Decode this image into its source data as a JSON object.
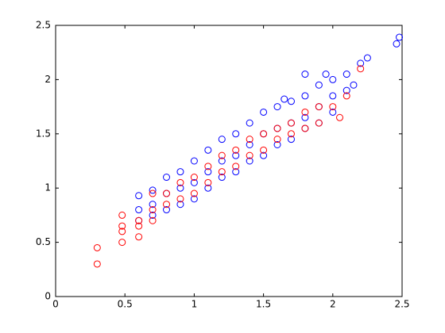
{
  "chart_data": {
    "type": "scatter",
    "xlim": [
      0,
      2.5
    ],
    "xticks": [
      0,
      0.5,
      1,
      1.5,
      2,
      2.5
    ],
    "ylim": [
      0,
      2.5
    ],
    "yticks": [
      0,
      0.5,
      1,
      1.5,
      2,
      2.5
    ],
    "series": [
      {
        "color": "#0000ff",
        "x": [
          0.6,
          0.6,
          0.6,
          0.7,
          0.7,
          0.7,
          0.8,
          0.8,
          0.8,
          0.9,
          0.9,
          0.9,
          1.0,
          1.0,
          1.0,
          1.1,
          1.1,
          1.1,
          1.2,
          1.2,
          1.2,
          1.3,
          1.3,
          1.3,
          1.4,
          1.4,
          1.4,
          1.5,
          1.5,
          1.5,
          1.6,
          1.6,
          1.6,
          1.7,
          1.7,
          1.7,
          1.8,
          1.8,
          1.8,
          1.9,
          1.9,
          1.9,
          2.0,
          2.0,
          2.0,
          2.1,
          2.1,
          2.15,
          2.2,
          2.25,
          2.46,
          2.48,
          1.8,
          1.65,
          1.95
        ],
        "values": [
          0.93,
          0.8,
          0.7,
          0.98,
          0.85,
          0.75,
          1.1,
          0.95,
          0.8,
          1.15,
          1.0,
          0.85,
          1.25,
          1.05,
          0.9,
          1.35,
          1.15,
          1.0,
          1.45,
          1.25,
          1.1,
          1.5,
          1.3,
          1.15,
          1.6,
          1.4,
          1.25,
          1.7,
          1.5,
          1.3,
          1.75,
          1.55,
          1.4,
          1.8,
          1.6,
          1.45,
          1.85,
          1.65,
          1.55,
          1.95,
          1.75,
          1.6,
          2.0,
          1.85,
          1.7,
          2.05,
          1.9,
          1.95,
          2.15,
          2.2,
          2.33,
          2.39,
          2.05,
          1.82,
          2.05
        ]
      },
      {
        "color": "#ff0000",
        "x": [
          0.3,
          0.3,
          0.48,
          0.48,
          0.48,
          0.48,
          0.6,
          0.6,
          0.6,
          0.7,
          0.7,
          0.7,
          0.8,
          0.8,
          0.9,
          0.9,
          1.0,
          1.0,
          1.1,
          1.1,
          1.2,
          1.2,
          1.3,
          1.3,
          1.4,
          1.4,
          1.5,
          1.5,
          1.6,
          1.6,
          1.7,
          1.7,
          1.8,
          1.8,
          1.9,
          1.9,
          2.0,
          2.05,
          2.1,
          2.2
        ],
        "values": [
          0.45,
          0.3,
          0.75,
          0.65,
          0.6,
          0.5,
          0.65,
          0.55,
          0.7,
          0.95,
          0.8,
          0.7,
          0.95,
          0.85,
          1.05,
          0.9,
          1.1,
          0.95,
          1.2,
          1.05,
          1.3,
          1.15,
          1.35,
          1.2,
          1.45,
          1.3,
          1.5,
          1.35,
          1.55,
          1.45,
          1.6,
          1.5,
          1.7,
          1.55,
          1.75,
          1.6,
          1.75,
          1.65,
          1.85,
          2.1
        ]
      }
    ]
  }
}
